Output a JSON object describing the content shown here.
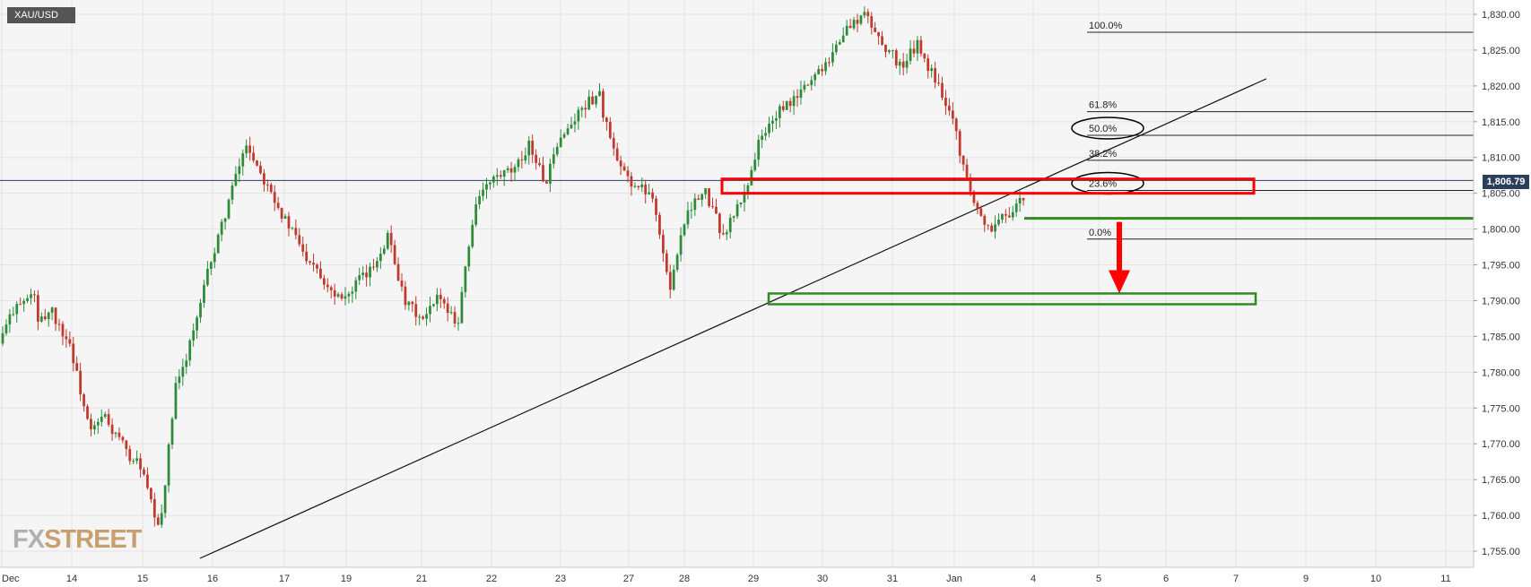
{
  "symbol": "XAU/USD",
  "last_price_label": "1,806.79",
  "logo": {
    "part1": "FX",
    "part2": "STREET"
  },
  "chart_data": {
    "type": "candlestick",
    "title": "XAU/USD",
    "y_axis": {
      "range": [
        1753,
        1832
      ],
      "ticks": [
        1830,
        1825,
        1820,
        1815,
        1810,
        1805,
        1800,
        1795,
        1790,
        1785,
        1780,
        1775,
        1770,
        1765,
        1760,
        1755
      ],
      "tick_labels": [
        "1,830.00",
        "1,825.00",
        "1,820.00",
        "1,815.00",
        "1,810.00",
        "1,805.00",
        "1,800.00",
        "1,795.00",
        "1,790.00",
        "1,785.00",
        "1,780.00",
        "1,775.00",
        "1,770.00",
        "1,765.00",
        "1,760.00",
        "1,755.00"
      ]
    },
    "x_axis": {
      "labels": [
        "Dec",
        "14",
        "15",
        "16",
        "17",
        "19",
        "21",
        "22",
        "23",
        "27",
        "28",
        "29",
        "30",
        "31",
        "Jan",
        "4",
        "5",
        "6",
        "7",
        "9",
        "10",
        "11"
      ]
    },
    "grid": true,
    "last_price": 1806.79,
    "series": [
      {
        "kind": "ohlc",
        "anchors": [
          [
            1784,
            1790
          ],
          [
            1789,
            1791
          ],
          [
            1786,
            1789
          ],
          [
            1788,
            1784
          ],
          [
            1784,
            1773
          ],
          [
            1771,
            1774
          ],
          [
            1773,
            1770
          ],
          [
            1769,
            1767
          ],
          [
            1767,
            1758
          ],
          [
            1756,
            1778
          ],
          [
            1777,
            1786
          ],
          [
            1785,
            1796
          ],
          [
            1795,
            1804
          ],
          [
            1804,
            1812
          ],
          [
            1812,
            1807
          ],
          [
            1808,
            1802
          ],
          [
            1802,
            1798
          ],
          [
            1797,
            1795
          ],
          [
            1794,
            1791
          ],
          [
            1791,
            1791
          ],
          [
            1792,
            1794
          ],
          [
            1794,
            1799
          ],
          [
            1800,
            1789
          ],
          [
            1790,
            1787
          ],
          [
            1787,
            1791
          ],
          [
            1790,
            1787
          ],
          [
            1788,
            1804
          ],
          [
            1804,
            1807
          ],
          [
            1807,
            1808
          ],
          [
            1807,
            1812
          ],
          [
            1812,
            1806
          ],
          [
            1807,
            1814
          ],
          [
            1813,
            1817
          ],
          [
            1817,
            1819
          ],
          [
            1818,
            1809
          ],
          [
            1809,
            1806
          ],
          [
            1806,
            1805
          ],
          [
            1805,
            1791
          ],
          [
            1793,
            1803
          ],
          [
            1803,
            1805
          ],
          [
            1805,
            1799
          ],
          [
            1799,
            1804
          ],
          [
            1803,
            1812
          ],
          [
            1812,
            1816
          ],
          [
            1816,
            1818
          ],
          [
            1818,
            1821
          ],
          [
            1821,
            1824
          ],
          [
            1824,
            1828
          ],
          [
            1828,
            1830
          ],
          [
            1830,
            1826
          ],
          [
            1826,
            1823
          ],
          [
            1822,
            1826
          ],
          [
            1825,
            1821
          ],
          [
            1821,
            1816
          ],
          [
            1815,
            1805
          ],
          [
            1805,
            1800
          ],
          [
            1800,
            1802
          ],
          [
            1802,
            1804
          ]
        ]
      }
    ],
    "annotations": {
      "fibonacci": [
        {
          "label": "100.0%",
          "price": 1827.5
        },
        {
          "label": "61.8%",
          "price": 1816.4
        },
        {
          "label": "50.0%",
          "price": 1813.1
        },
        {
          "label": "38.2%",
          "price": 1809.6
        },
        {
          "label": "23.6%",
          "price": 1805.4
        },
        {
          "label": "0.0%",
          "price": 1798.6
        }
      ],
      "circled_levels": [
        "50.0%",
        "23.6%"
      ],
      "trendline": {
        "from": [
          "16",
          1754
        ],
        "to": [
          "6",
          1821
        ]
      },
      "resistance_zone": {
        "from": "28",
        "to": "7",
        "price_low": 1805,
        "price_high": 1807,
        "color": "#ff0000"
      },
      "support_zone": {
        "from": "29",
        "to": "7",
        "price_low": 1789.5,
        "price_high": 1791,
        "color": "#2e8b1e"
      },
      "support_line": {
        "from": "4",
        "price": 1801.5,
        "color": "#2e8b1e"
      },
      "arrow_down": {
        "x": "6",
        "from_price": 1801,
        "to_price": 1791,
        "color": "#ff0000"
      }
    },
    "colors": {
      "up_candle": "#2e8b3a",
      "down_candle": "#c0392b",
      "background": "#f5f5f5",
      "grid": "#e4e4e4",
      "price_line": "#2b3e5c"
    }
  }
}
